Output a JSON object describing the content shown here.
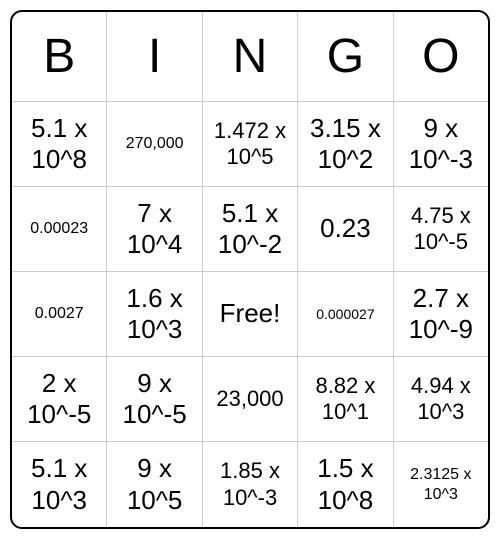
{
  "card": {
    "type": "bingo",
    "border_color": "#000000",
    "grid_line_color": "#cccccc",
    "background_color": "#ffffff",
    "text_color": "#000000",
    "border_radius": 12,
    "headers": [
      "B",
      "I",
      "N",
      "G",
      "O"
    ],
    "header_fontsize": 48,
    "rows": [
      [
        {
          "text": "5.1 x 10^8",
          "size": "large"
        },
        {
          "text": "270,000",
          "size": "small"
        },
        {
          "text": "1.472 x 10^5",
          "size": "medium"
        },
        {
          "text": "3.15 x 10^2",
          "size": "large"
        },
        {
          "text": "9 x 10^-3",
          "size": "large"
        }
      ],
      [
        {
          "text": "0.00023",
          "size": "small"
        },
        {
          "text": "7 x 10^4",
          "size": "large"
        },
        {
          "text": "5.1 x 10^-2",
          "size": "large"
        },
        {
          "text": "0.23",
          "size": "large"
        },
        {
          "text": "4.75 x 10^-5",
          "size": "medium"
        }
      ],
      [
        {
          "text": "0.0027",
          "size": "small"
        },
        {
          "text": "1.6 x 10^3",
          "size": "large"
        },
        {
          "text": "Free!",
          "size": "large"
        },
        {
          "text": "0.000027",
          "size": "xsmall"
        },
        {
          "text": "2.7 x 10^-9",
          "size": "large"
        }
      ],
      [
        {
          "text": "2 x 10^-5",
          "size": "large"
        },
        {
          "text": "9 x 10^-5",
          "size": "large"
        },
        {
          "text": "23,000",
          "size": "medium"
        },
        {
          "text": "8.82 x 10^1",
          "size": "medium"
        },
        {
          "text": "4.94 x 10^3",
          "size": "medium"
        }
      ],
      [
        {
          "text": "5.1 x 10^3",
          "size": "large"
        },
        {
          "text": "9 x 10^5",
          "size": "large"
        },
        {
          "text": "1.85 x 10^-3",
          "size": "medium"
        },
        {
          "text": "1.5 x 10^8",
          "size": "large"
        },
        {
          "text": "2.3125 x 10^3",
          "size": "small"
        }
      ]
    ]
  }
}
